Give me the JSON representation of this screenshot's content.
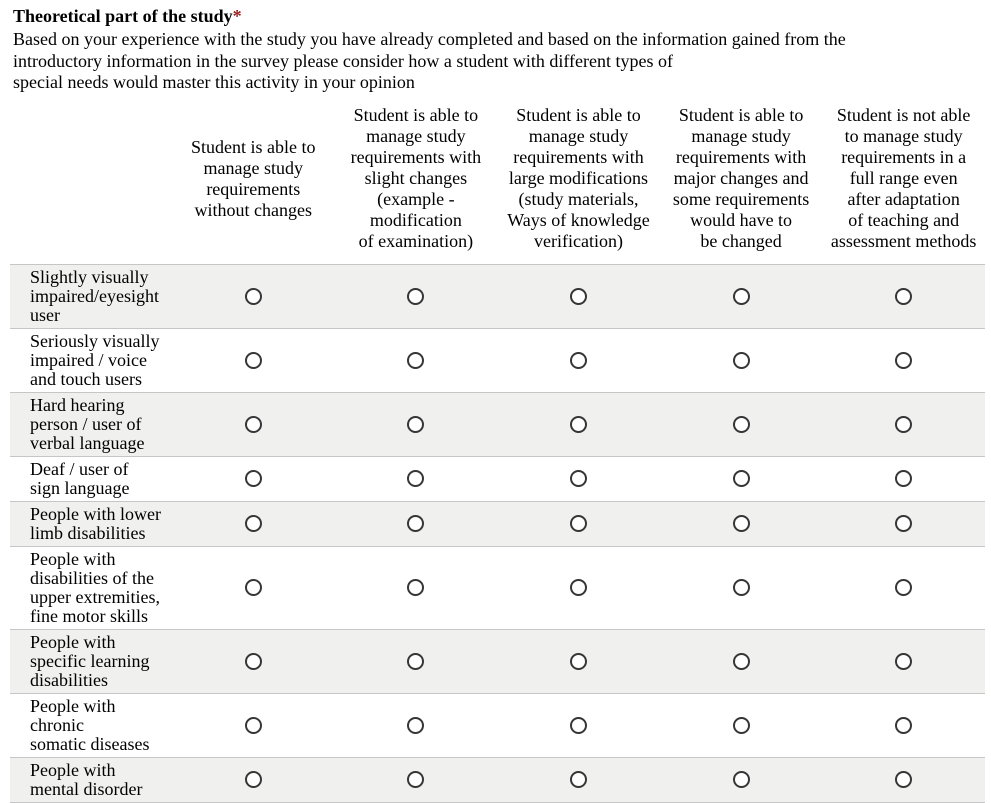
{
  "question": {
    "title": "Theoretical part of the study",
    "required_marker": "*",
    "description": "Based on your experience with the study you have already completed and based on the information gained from the\nintroductory information in the survey please consider how a student with different types of\nspecial needs would master this activity in your opinion"
  },
  "matrix": {
    "columns": [
      "Student is able to\nmanage study\nrequirements\nwithout changes",
      "Student is able to\nmanage study\nrequirements with\nslight changes\n(example -\nmodification\nof examination)",
      "Student is able to\nmanage study\nrequirements with\nlarge modifications\n(study materials,\nWays of knowledge\nverification)",
      "Student is able to\nmanage study\nrequirements with\nmajor changes and\nsome requirements\nwould have to\nbe changed",
      "Student is not able\nto manage study\nrequirements in a\nfull range even\nafter adaptation\nof teaching and\nassessment methods"
    ],
    "rows": [
      {
        "label": "Slightly visually\nimpaired/eyesight\nuser",
        "selected": null
      },
      {
        "label": "Seriously visually\nimpaired / voice\nand touch users",
        "selected": null
      },
      {
        "label": "Hard hearing\nperson / user of\nverbal language",
        "selected": null
      },
      {
        "label": "Deaf / user of\nsign language",
        "selected": null
      },
      {
        "label": "People with lower\nlimb disabilities",
        "selected": null
      },
      {
        "label": "People with\ndisabilities of the\nupper extremities,\nfine motor skills",
        "selected": null
      },
      {
        "label": "People with\nspecific learning\ndisabilities",
        "selected": null
      },
      {
        "label": "People with\nchronic\nsomatic diseases",
        "selected": null
      },
      {
        "label": "People with\nmental disorder",
        "selected": null
      }
    ]
  },
  "colors": {
    "required_asterisk": "#9b1b1b",
    "row_shade": "#f0f0ee",
    "row_border": "#c6c6c6",
    "radio_border": "#363636",
    "text": "#000000",
    "background": "#ffffff"
  }
}
